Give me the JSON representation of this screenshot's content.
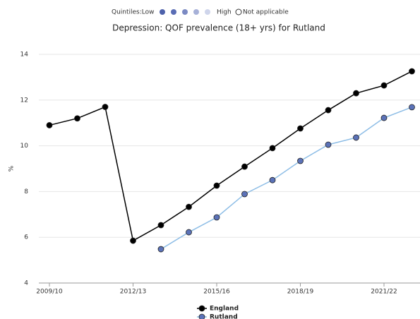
{
  "chart_data": {
    "type": "line",
    "title": "Depression: QOF prevalence (18+ yrs) for Rutland",
    "quintiles": {
      "label": "Quintiles:Low",
      "high": "High",
      "not_applicable": "Not applicable",
      "colors": [
        "#4e62ab",
        "#5a6db5",
        "#7b8ac3",
        "#a7b1d8",
        "#cfd5eb"
      ]
    },
    "y_label": "%",
    "categories": [
      "2009/10",
      null,
      null,
      "2012/13",
      null,
      null,
      "2015/16",
      null,
      null,
      "2018/19",
      null,
      null,
      "2021/22",
      null
    ],
    "series": [
      {
        "name": "England",
        "color": "#000000",
        "marker_color": "#000000",
        "values": [
          10.9,
          11.2,
          11.7,
          5.85,
          6.53,
          7.33,
          8.26,
          9.09,
          9.9,
          10.76,
          11.56,
          12.3,
          12.64,
          13.26
        ]
      },
      {
        "name": "Rutland",
        "color": "#8dbde6",
        "marker_color": "#5b72b8",
        "values": [
          null,
          null,
          null,
          null,
          5.48,
          6.22,
          6.87,
          7.89,
          8.5,
          9.34,
          10.05,
          10.36,
          11.22,
          11.69
        ]
      }
    ],
    "ylim": [
      4,
      14
    ],
    "yticks": [
      4,
      6,
      8,
      10,
      12,
      14
    ],
    "grid": true
  }
}
